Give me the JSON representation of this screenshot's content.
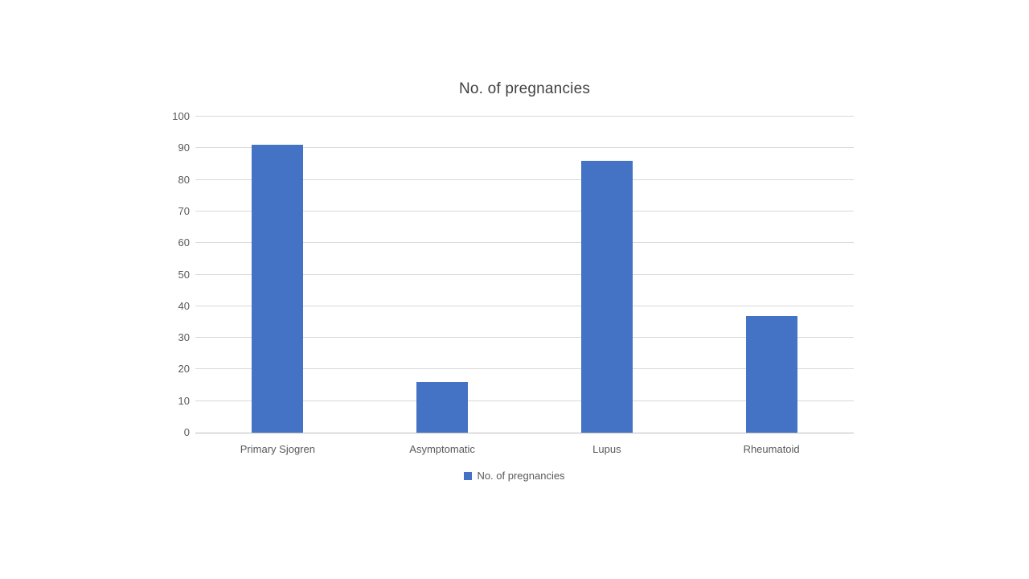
{
  "chart_data": {
    "type": "bar",
    "title": "No. of pregnancies",
    "series_name": "No. of pregnancies",
    "categories": [
      "Primary Sjogren",
      "Asymptomatic",
      "Lupus",
      "Rheumatoid"
    ],
    "values": [
      91,
      16,
      86,
      37
    ],
    "ylim": [
      0,
      100
    ],
    "ytick_step": 10,
    "ytick_labels": [
      "0",
      "10",
      "20",
      "30",
      "40",
      "50",
      "60",
      "70",
      "80",
      "90",
      "100"
    ],
    "grid": true,
    "legend_position": "bottom",
    "bar_color": "#4472c4",
    "gridline_color": "#d9d9d9",
    "text_color": "#595959",
    "title_color": "#404040",
    "background_color": "#ffffff"
  }
}
